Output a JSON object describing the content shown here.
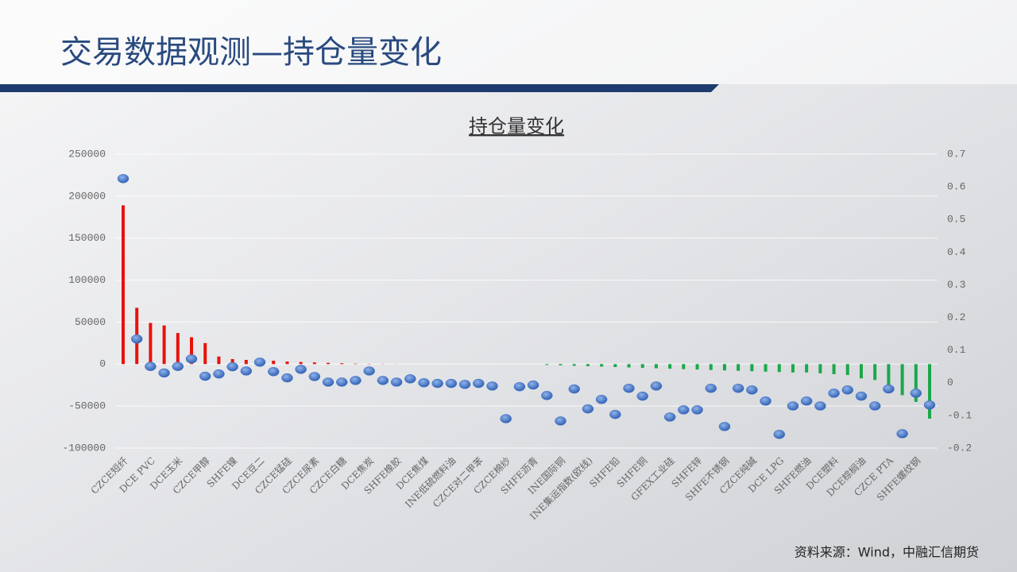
{
  "header": {
    "title": "交易数据观测—持仓量变化"
  },
  "chart_data": {
    "type": "combo",
    "title": "持仓量变化",
    "categories": [
      "CZCE短纤",
      null,
      "DCE PVC",
      null,
      "DCE玉米",
      null,
      "CZCE甲醇",
      null,
      "SHFE镍",
      null,
      "DCE豆二",
      null,
      "CZCE锰硅",
      null,
      "CZCE尿素",
      null,
      "CZCE白糖",
      null,
      "DCE焦炭",
      null,
      "SHFE橡胶",
      null,
      "DCE焦煤",
      null,
      "INE低硫燃料油",
      null,
      "CZCE对二甲苯",
      null,
      "CZCE棉纱",
      null,
      "SHFE沥青",
      null,
      "INE国际铜",
      null,
      "INE集运指数(欧线)",
      null,
      "SHFE铅",
      null,
      "SHFE铜",
      null,
      "GFEX工业硅",
      null,
      "SHFE锌",
      null,
      "SHFE不锈钢",
      null,
      "CZCE纯碱",
      null,
      "DCE LPG",
      null,
      "SHFE燃油",
      null,
      "DCE塑料",
      null,
      "DCE棕榈油",
      null,
      "CZCE PTA",
      null,
      "SHFE螺纹钢",
      null
    ],
    "series": [
      {
        "kind": "bar",
        "positive_color": "#e8120c",
        "negative_color": "#1aa84a",
        "values": [
          189000,
          67000,
          49000,
          46000,
          37000,
          32000,
          25000,
          9000,
          6000,
          5000,
          4500,
          4000,
          3000,
          2500,
          2000,
          1500,
          1000,
          500,
          300,
          200,
          100,
          0,
          0,
          0,
          0,
          0,
          0,
          0,
          0,
          0,
          0,
          -1000,
          -1500,
          -2000,
          -2500,
          -3000,
          -3500,
          -4000,
          -4500,
          -5000,
          -5500,
          -6000,
          -6500,
          -7000,
          -7500,
          -8000,
          -8500,
          -9000,
          -9500,
          -10000,
          -10000,
          -11000,
          -12000,
          -13000,
          -17000,
          -19000,
          -28000,
          -37000,
          -45000,
          -65000
        ]
      },
      {
        "kind": "scatter",
        "axis": "y2",
        "color": "#3a6fc4",
        "values": [
          0.625,
          0.134,
          0.05,
          0.03,
          0.05,
          0.073,
          0.02,
          0.027,
          0.049,
          0.036,
          0.063,
          0.034,
          0.015,
          0.041,
          0.019,
          0.002,
          0.002,
          0.007,
          0.036,
          0.007,
          0.002,
          0.012,
          0,
          -0.002,
          -0.002,
          -0.005,
          -0.002,
          -0.01,
          -0.11,
          -0.012,
          -0.007,
          -0.039,
          -0.117,
          -0.019,
          -0.08,
          -0.051,
          -0.097,
          -0.017,
          -0.041,
          -0.01,
          -0.105,
          -0.083,
          -0.083,
          -0.017,
          -0.134,
          -0.017,
          -0.022,
          -0.056,
          -0.158,
          -0.071,
          -0.056,
          -0.071,
          -0.032,
          -0.022,
          -0.041,
          -0.071,
          -0.019,
          -0.156,
          -0.032,
          -0.068
        ]
      }
    ],
    "ylim": [
      -100000,
      250000
    ],
    "yticks": [
      -100000,
      -50000,
      0,
      50000,
      100000,
      150000,
      200000,
      250000
    ],
    "y2lim": [
      -0.2,
      0.7
    ],
    "y2ticks": [
      -0.2,
      -0.1,
      0,
      0.1,
      0.2,
      0.3,
      0.4,
      0.5,
      0.6,
      0.7
    ]
  },
  "footer": {
    "source": "资料来源：Wind，中融汇信期货"
  }
}
